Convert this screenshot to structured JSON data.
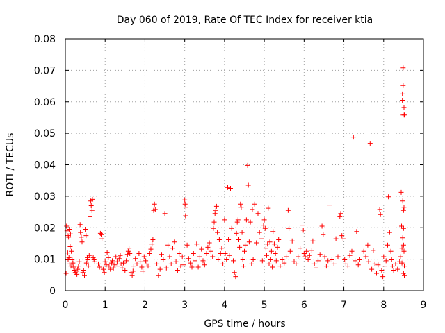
{
  "chart_data": {
    "type": "scatter",
    "title": "Day 060 of 2019, Rate Of TEC Index for receiver ktia",
    "xlabel": "GPS time / hours",
    "ylabel": "ROTI / TECUs",
    "xlim": [
      0,
      9
    ],
    "ylim": [
      0,
      0.08
    ],
    "x_ticks": [
      "0",
      "1",
      "2",
      "3",
      "4",
      "5",
      "6",
      "7",
      "8",
      "9"
    ],
    "y_ticks": [
      "0",
      "0.01",
      "0.02",
      "0.03",
      "0.04",
      "0.05",
      "0.06",
      "0.07",
      "0.08"
    ],
    "grid": true,
    "marker": "+",
    "color": "#ff0000",
    "series": [
      {
        "name": "ROTI",
        "points": [
          [
            0.02,
            0.0055
          ],
          [
            0.03,
            0.0205
          ],
          [
            0.04,
            0.019
          ],
          [
            0.05,
            0.0175
          ],
          [
            0.06,
            0.012
          ],
          [
            0.07,
            0.0098
          ],
          [
            0.08,
            0.017
          ],
          [
            0.09,
            0.0105
          ],
          [
            0.1,
            0.0195
          ],
          [
            0.11,
            0.0085
          ],
          [
            0.12,
            0.014
          ],
          [
            0.13,
            0.018
          ],
          [
            0.14,
            0.0078
          ],
          [
            0.15,
            0.0125
          ],
          [
            0.17,
            0.0098
          ],
          [
            0.19,
            0.0088
          ],
          [
            0.21,
            0.0075
          ],
          [
            0.23,
            0.0065
          ],
          [
            0.25,
            0.0058
          ],
          [
            0.27,
            0.0062
          ],
          [
            0.29,
            0.0052
          ],
          [
            0.31,
            0.0068
          ],
          [
            0.33,
            0.0078
          ],
          [
            0.35,
            0.0092
          ],
          [
            0.37,
            0.021
          ],
          [
            0.38,
            0.0185
          ],
          [
            0.4,
            0.017
          ],
          [
            0.42,
            0.0155
          ],
          [
            0.44,
            0.0058
          ],
          [
            0.46,
            0.0065
          ],
          [
            0.48,
            0.0048
          ],
          [
            0.5,
            0.0195
          ],
          [
            0.52,
            0.0175
          ],
          [
            0.53,
            0.0088
          ],
          [
            0.55,
            0.0105
          ],
          [
            0.56,
            0.0098
          ],
          [
            0.58,
            0.0078
          ],
          [
            0.6,
            0.0112
          ],
          [
            0.62,
            0.0235
          ],
          [
            0.64,
            0.0285
          ],
          [
            0.65,
            0.027
          ],
          [
            0.67,
            0.0255
          ],
          [
            0.68,
            0.029
          ],
          [
            0.7,
            0.0105
          ],
          [
            0.72,
            0.0098
          ],
          [
            0.74,
            0.0092
          ],
          [
            0.83,
            0.0085
          ],
          [
            0.86,
            0.0075
          ],
          [
            0.88,
            0.0182
          ],
          [
            0.9,
            0.0178
          ],
          [
            0.92,
            0.0165
          ],
          [
            0.95,
            0.0068
          ],
          [
            0.98,
            0.0058
          ],
          [
            1.0,
            0.0092
          ],
          [
            1.03,
            0.0082
          ],
          [
            1.05,
            0.0122
          ],
          [
            1.08,
            0.0105
          ],
          [
            1.1,
            0.0078
          ],
          [
            1.13,
            0.0068
          ],
          [
            1.16,
            0.0088
          ],
          [
            1.18,
            0.0095
          ],
          [
            1.21,
            0.0072
          ],
          [
            1.24,
            0.0082
          ],
          [
            1.27,
            0.0108
          ],
          [
            1.3,
            0.0092
          ],
          [
            1.32,
            0.0078
          ],
          [
            1.35,
            0.0102
          ],
          [
            1.38,
            0.0112
          ],
          [
            1.4,
            0.0085
          ],
          [
            1.43,
            0.0072
          ],
          [
            1.46,
            0.0088
          ],
          [
            1.5,
            0.0065
          ],
          [
            1.53,
            0.0095
          ],
          [
            1.56,
            0.0115
          ],
          [
            1.58,
            0.0125
          ],
          [
            1.6,
            0.0135
          ],
          [
            1.62,
            0.0118
          ],
          [
            1.65,
            0.0058
          ],
          [
            1.68,
            0.0048
          ],
          [
            1.7,
            0.0062
          ],
          [
            1.72,
            0.0078
          ],
          [
            1.76,
            0.0102
          ],
          [
            1.8,
            0.0085
          ],
          [
            1.85,
            0.0118
          ],
          [
            1.88,
            0.0092
          ],
          [
            1.92,
            0.0075
          ],
          [
            1.95,
            0.0062
          ],
          [
            1.98,
            0.0108
          ],
          [
            2.02,
            0.0095
          ],
          [
            2.05,
            0.0085
          ],
          [
            2.08,
            0.0078
          ],
          [
            2.12,
            0.0118
          ],
          [
            2.15,
            0.0132
          ],
          [
            2.18,
            0.0148
          ],
          [
            2.2,
            0.0162
          ],
          [
            2.22,
            0.0255
          ],
          [
            2.24,
            0.0275
          ],
          [
            2.26,
            0.0258
          ],
          [
            2.3,
            0.0085
          ],
          [
            2.34,
            0.0048
          ],
          [
            2.38,
            0.0068
          ],
          [
            2.42,
            0.0115
          ],
          [
            2.46,
            0.0098
          ],
          [
            2.5,
            0.0245
          ],
          [
            2.54,
            0.0072
          ],
          [
            2.58,
            0.0145
          ],
          [
            2.62,
            0.0108
          ],
          [
            2.66,
            0.0085
          ],
          [
            2.7,
            0.0135
          ],
          [
            2.74,
            0.0155
          ],
          [
            2.78,
            0.0092
          ],
          [
            2.82,
            0.0065
          ],
          [
            2.86,
            0.0118
          ],
          [
            2.9,
            0.0078
          ],
          [
            2.94,
            0.0108
          ],
          [
            2.98,
            0.0082
          ],
          [
            3.0,
            0.0288
          ],
          [
            3.01,
            0.0275
          ],
          [
            3.02,
            0.0238
          ],
          [
            3.03,
            0.0265
          ],
          [
            3.06,
            0.0145
          ],
          [
            3.1,
            0.0102
          ],
          [
            3.14,
            0.0088
          ],
          [
            3.18,
            0.0075
          ],
          [
            3.22,
            0.0118
          ],
          [
            3.26,
            0.0095
          ],
          [
            3.3,
            0.0148
          ],
          [
            3.34,
            0.0075
          ],
          [
            3.38,
            0.0108
          ],
          [
            3.42,
            0.0132
          ],
          [
            3.46,
            0.0095
          ],
          [
            3.5,
            0.0082
          ],
          [
            3.55,
            0.0118
          ],
          [
            3.58,
            0.0138
          ],
          [
            3.62,
            0.0152
          ],
          [
            3.66,
            0.0125
          ],
          [
            3.7,
            0.0108
          ],
          [
            3.72,
            0.0198
          ],
          [
            3.74,
            0.0218
          ],
          [
            3.76,
            0.0245
          ],
          [
            3.78,
            0.0255
          ],
          [
            3.8,
            0.0268
          ],
          [
            3.82,
            0.0185
          ],
          [
            3.84,
            0.0098
          ],
          [
            3.87,
            0.0162
          ],
          [
            3.9,
            0.0118
          ],
          [
            3.93,
            0.0135
          ],
          [
            3.96,
            0.0085
          ],
          [
            4.0,
            0.0225
          ],
          [
            4.02,
            0.0118
          ],
          [
            4.05,
            0.0098
          ],
          [
            4.08,
            0.0328
          ],
          [
            4.1,
            0.0162
          ],
          [
            4.12,
            0.0112
          ],
          [
            4.15,
            0.0325
          ],
          [
            4.18,
            0.0198
          ],
          [
            4.22,
            0.0095
          ],
          [
            4.25,
            0.0058
          ],
          [
            4.28,
            0.0045
          ],
          [
            4.3,
            0.0182
          ],
          [
            4.32,
            0.0218
          ],
          [
            4.34,
            0.0225
          ],
          [
            4.36,
            0.0162
          ],
          [
            4.38,
            0.0138
          ],
          [
            4.4,
            0.0275
          ],
          [
            4.42,
            0.0265
          ],
          [
            4.44,
            0.0185
          ],
          [
            4.46,
            0.0098
          ],
          [
            4.48,
            0.0078
          ],
          [
            4.5,
            0.0125
          ],
          [
            4.52,
            0.0145
          ],
          [
            4.55,
            0.0225
          ],
          [
            4.58,
            0.0398
          ],
          [
            4.6,
            0.0335
          ],
          [
            4.62,
            0.0155
          ],
          [
            4.65,
            0.0218
          ],
          [
            4.68,
            0.0085
          ],
          [
            4.7,
            0.0258
          ],
          [
            4.72,
            0.0098
          ],
          [
            4.75,
            0.0275
          ],
          [
            4.8,
            0.0152
          ],
          [
            4.84,
            0.0245
          ],
          [
            4.88,
            0.0185
          ],
          [
            4.92,
            0.0165
          ],
          [
            4.95,
            0.0095
          ],
          [
            4.98,
            0.0208
          ],
          [
            5.0,
            0.0225
          ],
          [
            5.02,
            0.0198
          ],
          [
            5.04,
            0.0135
          ],
          [
            5.06,
            0.0112
          ],
          [
            5.08,
            0.0148
          ],
          [
            5.1,
            0.0262
          ],
          [
            5.12,
            0.0085
          ],
          [
            5.14,
            0.0155
          ],
          [
            5.16,
            0.0098
          ],
          [
            5.18,
            0.0125
          ],
          [
            5.2,
            0.0075
          ],
          [
            5.22,
            0.0188
          ],
          [
            5.25,
            0.0148
          ],
          [
            5.28,
            0.0118
          ],
          [
            5.3,
            0.0095
          ],
          [
            5.33,
            0.0138
          ],
          [
            5.36,
            0.0162
          ],
          [
            5.4,
            0.0078
          ],
          [
            5.45,
            0.0098
          ],
          [
            5.5,
            0.0088
          ],
          [
            5.55,
            0.0108
          ],
          [
            5.6,
            0.0255
          ],
          [
            5.62,
            0.0198
          ],
          [
            5.65,
            0.0125
          ],
          [
            5.7,
            0.0158
          ],
          [
            5.75,
            0.0092
          ],
          [
            5.8,
            0.0085
          ],
          [
            5.85,
            0.0108
          ],
          [
            5.9,
            0.0135
          ],
          [
            5.95,
            0.0208
          ],
          [
            5.98,
            0.0192
          ],
          [
            6.0,
            0.0118
          ],
          [
            6.03,
            0.0108
          ],
          [
            6.06,
            0.0125
          ],
          [
            6.1,
            0.0098
          ],
          [
            6.14,
            0.0112
          ],
          [
            6.18,
            0.0128
          ],
          [
            6.22,
            0.0158
          ],
          [
            6.26,
            0.0085
          ],
          [
            6.3,
            0.0072
          ],
          [
            6.35,
            0.0095
          ],
          [
            6.4,
            0.0115
          ],
          [
            6.45,
            0.0205
          ],
          [
            6.48,
            0.0178
          ],
          [
            6.52,
            0.0108
          ],
          [
            6.56,
            0.0078
          ],
          [
            6.6,
            0.0095
          ],
          [
            6.65,
            0.0272
          ],
          [
            6.7,
            0.0098
          ],
          [
            6.75,
            0.0085
          ],
          [
            6.8,
            0.0165
          ],
          [
            6.85,
            0.0108
          ],
          [
            6.9,
            0.0235
          ],
          [
            6.92,
            0.0245
          ],
          [
            6.95,
            0.0175
          ],
          [
            6.98,
            0.0165
          ],
          [
            7.02,
            0.0098
          ],
          [
            7.05,
            0.0085
          ],
          [
            7.1,
            0.0078
          ],
          [
            7.15,
            0.0112
          ],
          [
            7.2,
            0.0125
          ],
          [
            7.24,
            0.0488
          ],
          [
            7.28,
            0.0095
          ],
          [
            7.32,
            0.0188
          ],
          [
            7.36,
            0.0082
          ],
          [
            7.4,
            0.0098
          ],
          [
            7.5,
            0.0125
          ],
          [
            7.55,
            0.0108
          ],
          [
            7.6,
            0.0145
          ],
          [
            7.62,
            0.0092
          ],
          [
            7.66,
            0.0468
          ],
          [
            7.7,
            0.0068
          ],
          [
            7.74,
            0.0128
          ],
          [
            7.78,
            0.0085
          ],
          [
            7.82,
            0.0055
          ],
          [
            7.86,
            0.0082
          ],
          [
            7.9,
            0.0258
          ],
          [
            7.92,
            0.0242
          ],
          [
            7.95,
            0.0065
          ],
          [
            7.98,
            0.0045
          ],
          [
            8.0,
            0.0108
          ],
          [
            8.03,
            0.0078
          ],
          [
            8.06,
            0.0095
          ],
          [
            8.1,
            0.0145
          ],
          [
            8.12,
            0.0298
          ],
          [
            8.15,
            0.0185
          ],
          [
            8.18,
            0.0125
          ],
          [
            8.2,
            0.0098
          ],
          [
            8.22,
            0.0078
          ],
          [
            8.25,
            0.0065
          ],
          [
            8.3,
            0.0085
          ],
          [
            8.35,
            0.0068
          ],
          [
            8.4,
            0.0092
          ],
          [
            8.42,
            0.0108
          ],
          [
            8.44,
            0.0312
          ],
          [
            8.45,
            0.0205
          ],
          [
            8.46,
            0.0135
          ],
          [
            8.46,
            0.0088
          ],
          [
            8.47,
            0.0625
          ],
          [
            8.47,
            0.0605
          ],
          [
            8.48,
            0.0285
          ],
          [
            8.48,
            0.0168
          ],
          [
            8.49,
            0.0708
          ],
          [
            8.49,
            0.0652
          ],
          [
            8.49,
            0.0558
          ],
          [
            8.5,
            0.0255
          ],
          [
            8.5,
            0.0198
          ],
          [
            8.5,
            0.0145
          ],
          [
            8.5,
            0.0055
          ],
          [
            8.51,
            0.0582
          ],
          [
            8.51,
            0.0265
          ],
          [
            8.51,
            0.0125
          ],
          [
            8.52,
            0.0558
          ],
          [
            8.52,
            0.0078
          ],
          [
            8.52,
            0.0048
          ]
        ]
      }
    ]
  }
}
